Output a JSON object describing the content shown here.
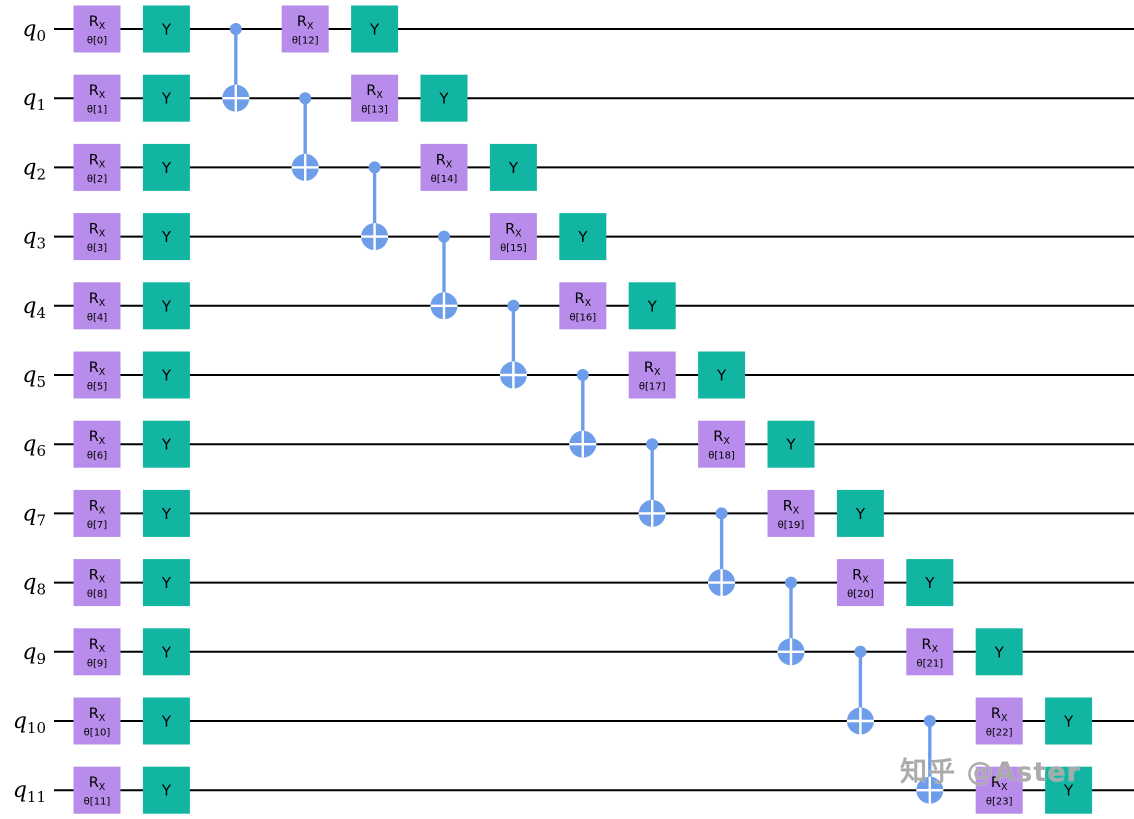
{
  "diagram": {
    "type": "quantum-circuit",
    "num_qubits": 12,
    "qubit_base": "q",
    "qubit_subs": [
      "0",
      "1",
      "2",
      "3",
      "4",
      "5",
      "6",
      "7",
      "8",
      "9",
      "10",
      "11"
    ]
  },
  "gates": {
    "rx_label_main": "R",
    "rx_label_sub": "X",
    "y_label": "Y",
    "rx_params_layer1": [
      "θ[0]",
      "θ[1]",
      "θ[2]",
      "θ[3]",
      "θ[4]",
      "θ[5]",
      "θ[6]",
      "θ[7]",
      "θ[8]",
      "θ[9]",
      "θ[10]",
      "θ[11]"
    ],
    "rx_params_layer2": [
      "θ[12]",
      "θ[13]",
      "θ[14]",
      "θ[15]",
      "θ[16]",
      "θ[17]",
      "θ[18]",
      "θ[19]",
      "θ[20]",
      "θ[21]",
      "θ[22]",
      "θ[23]"
    ],
    "cnots": [
      {
        "control": 0,
        "target": 1
      },
      {
        "control": 1,
        "target": 2
      },
      {
        "control": 2,
        "target": 3
      },
      {
        "control": 3,
        "target": 4
      },
      {
        "control": 4,
        "target": 5
      },
      {
        "control": 5,
        "target": 6
      },
      {
        "control": 6,
        "target": 7
      },
      {
        "control": 7,
        "target": 8
      },
      {
        "control": 8,
        "target": 9
      },
      {
        "control": 9,
        "target": 10
      },
      {
        "control": 10,
        "target": 11
      }
    ]
  },
  "colors": {
    "rx_fill": "#B88CEA",
    "y_fill": "#12B5A1",
    "cnot_blue": "#6E9EEA",
    "wire": "#000000",
    "gate_text": "#000000",
    "cross": "#FFFFFF"
  },
  "watermark": {
    "text": "知乎 @Aster"
  }
}
